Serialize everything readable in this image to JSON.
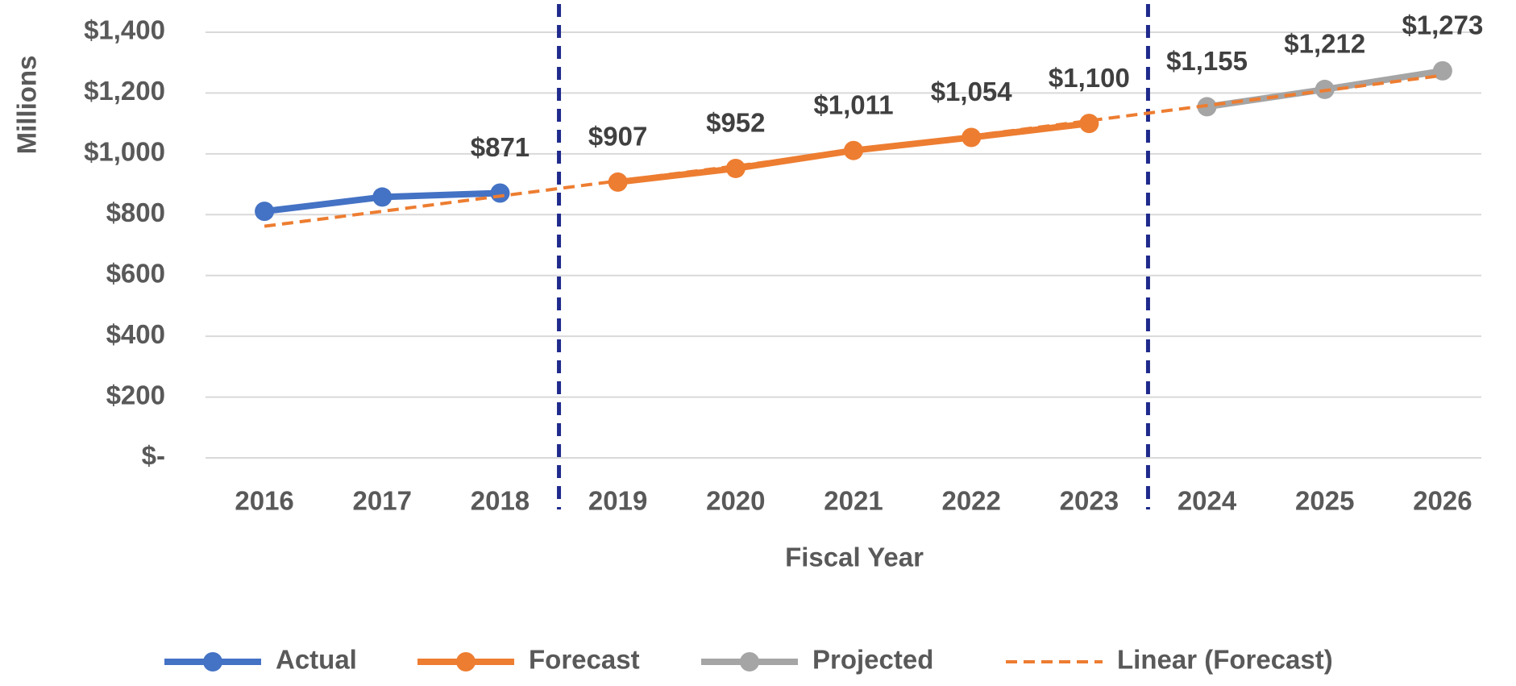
{
  "chart_data": {
    "type": "line",
    "x_label": "Fiscal Year",
    "y_label": "Millions",
    "categories": [
      "2016",
      "2017",
      "2018",
      "2019",
      "2020",
      "2021",
      "2022",
      "2023",
      "2024",
      "2025",
      "2026"
    ],
    "series": [
      {
        "name": "Actual",
        "color": "#4472c4",
        "values": [
          811,
          858,
          871,
          null,
          null,
          null,
          null,
          null,
          null,
          null,
          null
        ],
        "value_labels": [
          null,
          null,
          "$871",
          null,
          null,
          null,
          null,
          null,
          null,
          null,
          null
        ]
      },
      {
        "name": "Forecast",
        "color": "#ed7d31",
        "values": [
          null,
          null,
          null,
          907,
          952,
          1011,
          1054,
          1100,
          null,
          null,
          null
        ],
        "value_labels": [
          null,
          null,
          null,
          "$907",
          "$952",
          "$1,011",
          "$1,054",
          "$1,100",
          null,
          null,
          null
        ]
      },
      {
        "name": "Projected",
        "color": "#a5a5a5",
        "values": [
          null,
          null,
          null,
          null,
          null,
          null,
          null,
          null,
          1155,
          1212,
          1273
        ],
        "value_labels": [
          null,
          null,
          null,
          null,
          null,
          null,
          null,
          null,
          "$1,155",
          "$1,212",
          "$1,273"
        ]
      },
      {
        "name": "Linear (Forecast)",
        "color": "#ed7d31",
        "dashed": true,
        "values": [
          762,
          811,
          861,
          911,
          960,
          1010,
          1059,
          1109,
          1159,
          1208,
          1258
        ]
      }
    ],
    "ylim": [
      0,
      1400
    ],
    "yticks": [
      {
        "value": 0,
        "label": "$-"
      },
      {
        "value": 200,
        "label": "$200"
      },
      {
        "value": 400,
        "label": "$400"
      },
      {
        "value": 600,
        "label": "$600"
      },
      {
        "value": 800,
        "label": "$800"
      },
      {
        "value": 1000,
        "label": "$1,000"
      },
      {
        "value": 1200,
        "label": "$1,200"
      },
      {
        "value": 1400,
        "label": "$1,400"
      }
    ],
    "grid": true,
    "legend": "bottom",
    "divider_color": "#1f2a8c"
  }
}
